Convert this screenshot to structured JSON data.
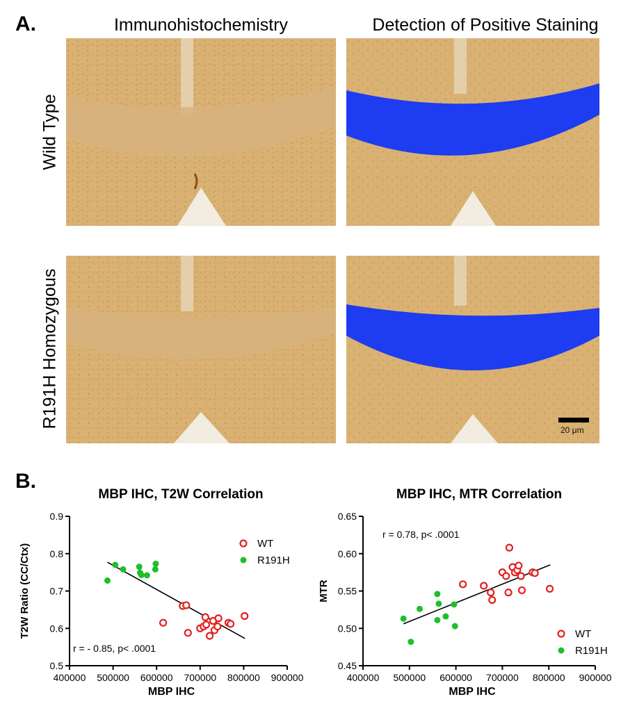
{
  "figure": {
    "panel_a_label": "A.",
    "panel_b_label": "B.",
    "col_headers": [
      "Immunohistochemistry",
      "Detection of Positive Staining"
    ],
    "row_labels": [
      "Wild Type",
      "R191H Homozygous"
    ],
    "scale_bar_label": "20 μm",
    "colors": {
      "tissue": "#d8ad6e",
      "stain": "#1e3cf0",
      "wt": "#e32020",
      "r191h": "#1fbf2a"
    }
  },
  "chart_data": [
    {
      "type": "scatter",
      "title": "MBP IHC, T2W Correlation",
      "xlabel": "MBP IHC",
      "ylabel": "T2W Ratio (CC/Ctx)",
      "xlim": [
        400000,
        900000
      ],
      "ylim": [
        0.5,
        0.9
      ],
      "x_ticks": [
        400000,
        500000,
        600000,
        700000,
        800000,
        900000
      ],
      "y_ticks": [
        0.5,
        0.6,
        0.7,
        0.8,
        0.9
      ],
      "x_tick_labels": [
        "400000",
        "500000",
        "600000",
        "700000",
        "800000",
        "900000"
      ],
      "y_tick_labels": [
        "0.5",
        "0.6",
        "0.7",
        "0.8",
        "0.9"
      ],
      "annotation": "r = - 0.85, p< .0001",
      "legend": "top-right",
      "series": [
        {
          "name": "WT",
          "marker": "open-circle",
          "x": [
            615000,
            660000,
            668000,
            672000,
            700000,
            708000,
            712000,
            714000,
            722000,
            730000,
            733000,
            740000,
            742000,
            765000,
            770000,
            802000
          ],
          "y": [
            0.615,
            0.66,
            0.662,
            0.588,
            0.6,
            0.605,
            0.63,
            0.61,
            0.58,
            0.62,
            0.595,
            0.605,
            0.627,
            0.615,
            0.612,
            0.633
          ]
        },
        {
          "name": "R191H",
          "marker": "filled-circle",
          "x": [
            487000,
            505000,
            523000,
            560000,
            562000,
            565000,
            578000,
            597000,
            598000
          ],
          "y": [
            0.728,
            0.77,
            0.758,
            0.765,
            0.749,
            0.743,
            0.742,
            0.758,
            0.773
          ]
        }
      ],
      "fit_line": {
        "x": [
          487000,
          803000
        ],
        "y": [
          0.777,
          0.573
        ]
      }
    },
    {
      "type": "scatter",
      "title": "MBP IHC, MTR Correlation",
      "xlabel": "MBP IHC",
      "ylabel": "MTR",
      "xlim": [
        400000,
        900000
      ],
      "ylim": [
        0.45,
        0.65
      ],
      "x_ticks": [
        400000,
        500000,
        600000,
        700000,
        800000,
        900000
      ],
      "y_ticks": [
        0.45,
        0.5,
        0.55,
        0.6,
        0.65
      ],
      "x_tick_labels": [
        "400000",
        "500000",
        "600000",
        "700000",
        "800000",
        "900000"
      ],
      "y_tick_labels": [
        "0.45",
        "0.50",
        "0.55",
        "0.60",
        "0.65"
      ],
      "annotation": "r = 0.78, p< .0001",
      "legend": "bottom-right",
      "series": [
        {
          "name": "WT",
          "marker": "open-circle",
          "x": [
            615000,
            660000,
            675000,
            678000,
            700000,
            708000,
            713000,
            715000,
            722000,
            727000,
            732000,
            735000,
            740000,
            742000,
            765000,
            770000,
            802000
          ],
          "y": [
            0.559,
            0.557,
            0.548,
            0.538,
            0.575,
            0.57,
            0.548,
            0.608,
            0.582,
            0.575,
            0.578,
            0.584,
            0.57,
            0.551,
            0.575,
            0.574,
            0.553
          ]
        },
        {
          "name": "R191H",
          "marker": "filled-circle",
          "x": [
            487000,
            503000,
            522000,
            560000,
            560000,
            563000,
            578000,
            596000,
            598000
          ],
          "y": [
            0.513,
            0.482,
            0.526,
            0.546,
            0.511,
            0.533,
            0.516,
            0.532,
            0.503
          ]
        }
      ],
      "fit_line": {
        "x": [
          487000,
          803000
        ],
        "y": [
          0.506,
          0.585
        ]
      }
    }
  ]
}
